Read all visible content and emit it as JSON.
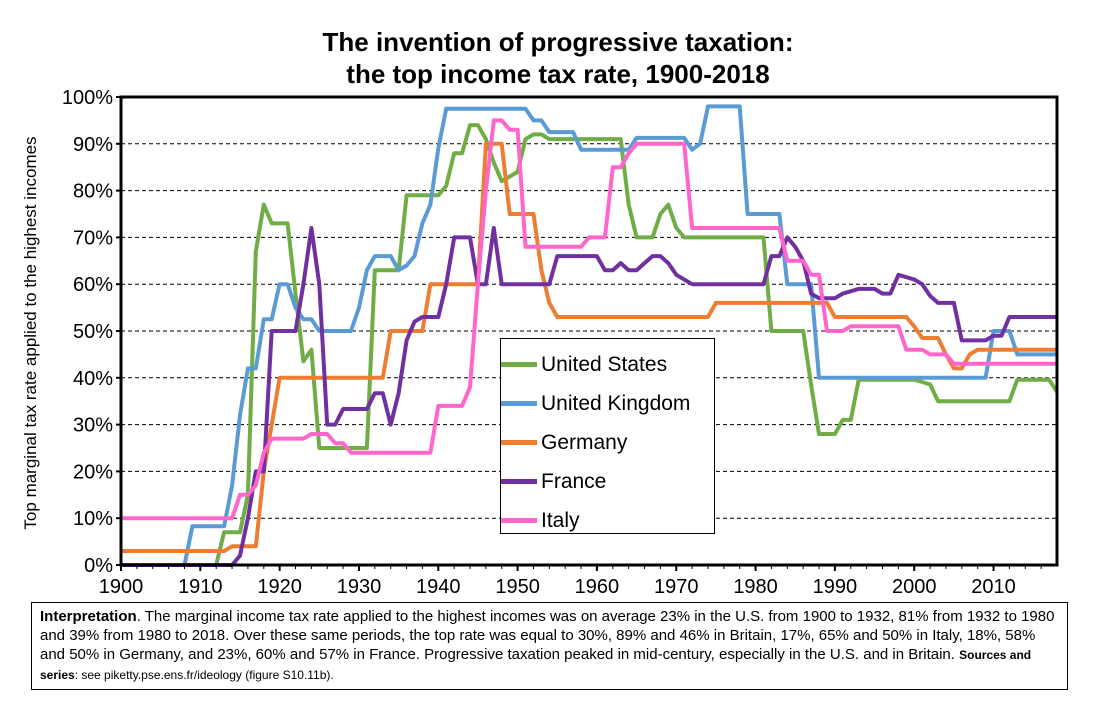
{
  "title_line1": "The invention of progressive taxation:",
  "title_line2": "the top income tax rate, 1900-2018",
  "note": {
    "lead": "Interpretation",
    "body": ". The marginal income tax rate applied to the highest incomes was on average 23% in the U.S. from 1900 to 1932, 81% from 1932 to 1980 and 39% from 1980 to 2018. Over these same periods, the top rate was equal to 30%, 89% and 46% in Britain, 17%, 65% and 50% in Italy, 18%, 58% and 50% in Germany, and 23%, 60% and 57% in France. Progressive taxation peaked in mid-century, especially in the U.S. and in Britain.   ",
    "sources_lead": "Sources and series",
    "sources_body": ": see piketty.pse.ens.fr/ideology (figure S10.11b)."
  },
  "chart_data": {
    "type": "line",
    "title": "The invention of progressive taxation: the top income tax rate, 1900-2018",
    "xlabel": "",
    "ylabel": "Top marginal tax rate applied to the highest incomes",
    "xlim": [
      1900,
      2018
    ],
    "ylim": [
      0,
      100
    ],
    "x_ticks": [
      "1900",
      "1910",
      "1920",
      "1930",
      "1940",
      "1950",
      "1960",
      "1970",
      "1980",
      "1990",
      "2000",
      "2010"
    ],
    "y_ticks": [
      "0%",
      "10%",
      "20%",
      "30%",
      "40%",
      "50%",
      "60%",
      "70%",
      "80%",
      "90%",
      "100%"
    ],
    "grid": "horizontal dashed",
    "legend_position": "center",
    "series": [
      {
        "name": "United States",
        "color": "#70ad47",
        "points": [
          [
            1900,
            0
          ],
          [
            1912,
            0
          ],
          [
            1913,
            7
          ],
          [
            1915,
            7
          ],
          [
            1916,
            15
          ],
          [
            1917,
            67
          ],
          [
            1918,
            77
          ],
          [
            1919,
            73
          ],
          [
            1921,
            73
          ],
          [
            1922,
            58
          ],
          [
            1923,
            43.5
          ],
          [
            1924,
            46
          ],
          [
            1925,
            25
          ],
          [
            1931,
            25
          ],
          [
            1932,
            63
          ],
          [
            1935,
            63
          ],
          [
            1936,
            79
          ],
          [
            1940,
            79
          ],
          [
            1941,
            81
          ],
          [
            1942,
            88
          ],
          [
            1943,
            88
          ],
          [
            1944,
            94
          ],
          [
            1945,
            94
          ],
          [
            1946,
            91
          ],
          [
            1947,
            86
          ],
          [
            1948,
            82
          ],
          [
            1950,
            84
          ],
          [
            1951,
            91
          ],
          [
            1952,
            92
          ],
          [
            1953,
            92
          ],
          [
            1954,
            91
          ],
          [
            1963,
            91
          ],
          [
            1964,
            77
          ],
          [
            1965,
            70
          ],
          [
            1967,
            70
          ],
          [
            1968,
            75
          ],
          [
            1969,
            77
          ],
          [
            1970,
            72
          ],
          [
            1971,
            70
          ],
          [
            1981,
            70
          ],
          [
            1982,
            50
          ],
          [
            1986,
            50
          ],
          [
            1987,
            38.5
          ],
          [
            1988,
            28
          ],
          [
            1990,
            28
          ],
          [
            1991,
            31
          ],
          [
            1992,
            31
          ],
          [
            1993,
            39.6
          ],
          [
            2000,
            39.6
          ],
          [
            2001,
            39.1
          ],
          [
            2002,
            38.6
          ],
          [
            2003,
            35
          ],
          [
            2012,
            35
          ],
          [
            2013,
            39.6
          ],
          [
            2017,
            39.6
          ],
          [
            2018,
            37
          ]
        ]
      },
      {
        "name": "United Kingdom",
        "color": "#5b9bd5",
        "points": [
          [
            1900,
            0
          ],
          [
            1908,
            0
          ],
          [
            1909,
            8.3
          ],
          [
            1913,
            8.3
          ],
          [
            1914,
            17
          ],
          [
            1915,
            32
          ],
          [
            1916,
            42
          ],
          [
            1917,
            42
          ],
          [
            1918,
            52.5
          ],
          [
            1919,
            52.5
          ],
          [
            1920,
            60
          ],
          [
            1921,
            60
          ],
          [
            1922,
            55
          ],
          [
            1923,
            52.5
          ],
          [
            1924,
            52.5
          ],
          [
            1925,
            50
          ],
          [
            1929,
            50
          ],
          [
            1930,
            55
          ],
          [
            1931,
            63
          ],
          [
            1932,
            66
          ],
          [
            1934,
            66
          ],
          [
            1935,
            63
          ],
          [
            1936,
            64
          ],
          [
            1937,
            66
          ],
          [
            1938,
            73
          ],
          [
            1939,
            77
          ],
          [
            1940,
            89
          ],
          [
            1941,
            97.5
          ],
          [
            1951,
            97.5
          ],
          [
            1952,
            95
          ],
          [
            1953,
            95
          ],
          [
            1954,
            92.5
          ],
          [
            1957,
            92.5
          ],
          [
            1958,
            88.75
          ],
          [
            1964,
            88.75
          ],
          [
            1965,
            91.25
          ],
          [
            1971,
            91.25
          ],
          [
            1972,
            88.75
          ],
          [
            1973,
            90
          ],
          [
            1974,
            98
          ],
          [
            1978,
            98
          ],
          [
            1979,
            75
          ],
          [
            1983,
            75
          ],
          [
            1984,
            60
          ],
          [
            1987,
            60
          ],
          [
            1988,
            40
          ],
          [
            2009,
            40
          ],
          [
            2010,
            50
          ],
          [
            2012,
            50
          ],
          [
            2013,
            45
          ],
          [
            2018,
            45
          ]
        ]
      },
      {
        "name": "Germany",
        "color": "#ed7d31",
        "points": [
          [
            1900,
            3
          ],
          [
            1912,
            3
          ],
          [
            1913,
            3
          ],
          [
            1914,
            4
          ],
          [
            1917,
            4
          ],
          [
            1918,
            20
          ],
          [
            1919,
            30
          ],
          [
            1920,
            40
          ],
          [
            1932,
            40
          ],
          [
            1933,
            40
          ],
          [
            1934,
            50
          ],
          [
            1938,
            50
          ],
          [
            1939,
            60
          ],
          [
            1945,
            60
          ],
          [
            1946,
            90
          ],
          [
            1948,
            90
          ],
          [
            1949,
            75
          ],
          [
            1952,
            75
          ],
          [
            1953,
            63
          ],
          [
            1954,
            56
          ],
          [
            1955,
            53
          ],
          [
            1974,
            53
          ],
          [
            1975,
            56
          ],
          [
            1989,
            56
          ],
          [
            1990,
            53
          ],
          [
            1998,
            53
          ],
          [
            1999,
            53
          ],
          [
            2000,
            51
          ],
          [
            2001,
            48.5
          ],
          [
            2003,
            48.5
          ],
          [
            2004,
            45
          ],
          [
            2005,
            42
          ],
          [
            2006,
            42
          ],
          [
            2007,
            45
          ],
          [
            2008,
            46
          ],
          [
            2018,
            46
          ]
        ]
      },
      {
        "name": "France",
        "color": "#7030a0",
        "points": [
          [
            1900,
            0
          ],
          [
            1914,
            0
          ],
          [
            1915,
            2
          ],
          [
            1916,
            10
          ],
          [
            1917,
            20
          ],
          [
            1918,
            20
          ],
          [
            1919,
            50
          ],
          [
            1922,
            50
          ],
          [
            1923,
            60
          ],
          [
            1924,
            72
          ],
          [
            1925,
            60
          ],
          [
            1926,
            30
          ],
          [
            1927,
            30
          ],
          [
            1928,
            33.33
          ],
          [
            1931,
            33.33
          ],
          [
            1932,
            36.7
          ],
          [
            1933,
            36.7
          ],
          [
            1934,
            30
          ],
          [
            1935,
            36.7
          ],
          [
            1936,
            48
          ],
          [
            1937,
            52
          ],
          [
            1938,
            53
          ],
          [
            1940,
            53
          ],
          [
            1941,
            60
          ],
          [
            1942,
            70
          ],
          [
            1944,
            70
          ],
          [
            1945,
            60
          ],
          [
            1946,
            60
          ],
          [
            1947,
            72
          ],
          [
            1948,
            60
          ],
          [
            1954,
            60
          ],
          [
            1955,
            66
          ],
          [
            1960,
            66
          ],
          [
            1961,
            63
          ],
          [
            1962,
            63
          ],
          [
            1963,
            64.5
          ],
          [
            1964,
            63
          ],
          [
            1965,
            63
          ],
          [
            1966,
            64.5
          ],
          [
            1967,
            66
          ],
          [
            1968,
            66
          ],
          [
            1969,
            64.5
          ],
          [
            1970,
            62
          ],
          [
            1972,
            60
          ],
          [
            1981,
            60
          ],
          [
            1982,
            66
          ],
          [
            1983,
            66
          ],
          [
            1984,
            70
          ],
          [
            1985,
            68
          ],
          [
            1986,
            65
          ],
          [
            1987,
            58
          ],
          [
            1988,
            57
          ],
          [
            1990,
            57
          ],
          [
            1991,
            58
          ],
          [
            1993,
            59
          ],
          [
            1995,
            59
          ],
          [
            1996,
            58
          ],
          [
            1997,
            58
          ],
          [
            1998,
            62
          ],
          [
            2000,
            61
          ],
          [
            2001,
            60
          ],
          [
            2002,
            57.5
          ],
          [
            2003,
            56
          ],
          [
            2005,
            56
          ],
          [
            2006,
            48
          ],
          [
            2009,
            48
          ],
          [
            2010,
            49
          ],
          [
            2011,
            49
          ],
          [
            2012,
            53
          ],
          [
            2018,
            53
          ]
        ]
      },
      {
        "name": "Italy",
        "color": "#ff66cc",
        "points": [
          [
            1900,
            10
          ],
          [
            1913,
            10
          ],
          [
            1914,
            10
          ],
          [
            1915,
            15
          ],
          [
            1916,
            15
          ],
          [
            1917,
            17
          ],
          [
            1918,
            24
          ],
          [
            1919,
            27
          ],
          [
            1923,
            27
          ],
          [
            1924,
            28
          ],
          [
            1926,
            28
          ],
          [
            1927,
            26
          ],
          [
            1928,
            26
          ],
          [
            1929,
            24
          ],
          [
            1939,
            24
          ],
          [
            1940,
            34
          ],
          [
            1943,
            34
          ],
          [
            1944,
            38
          ],
          [
            1945,
            60
          ],
          [
            1946,
            80
          ],
          [
            1947,
            95
          ],
          [
            1948,
            95
          ],
          [
            1949,
            93
          ],
          [
            1950,
            93
          ],
          [
            1951,
            68
          ],
          [
            1958,
            68
          ],
          [
            1959,
            70
          ],
          [
            1961,
            70
          ],
          [
            1962,
            85
          ],
          [
            1963,
            85
          ],
          [
            1964,
            88
          ],
          [
            1965,
            90
          ],
          [
            1971,
            90
          ],
          [
            1972,
            72
          ],
          [
            1983,
            72
          ],
          [
            1984,
            65
          ],
          [
            1986,
            65
          ],
          [
            1987,
            62
          ],
          [
            1988,
            62
          ],
          [
            1989,
            50
          ],
          [
            1991,
            50
          ],
          [
            1992,
            51
          ],
          [
            1998,
            51
          ],
          [
            1999,
            46
          ],
          [
            2001,
            46
          ],
          [
            2002,
            45
          ],
          [
            2004,
            45
          ],
          [
            2005,
            43
          ],
          [
            2018,
            43
          ]
        ]
      }
    ]
  }
}
